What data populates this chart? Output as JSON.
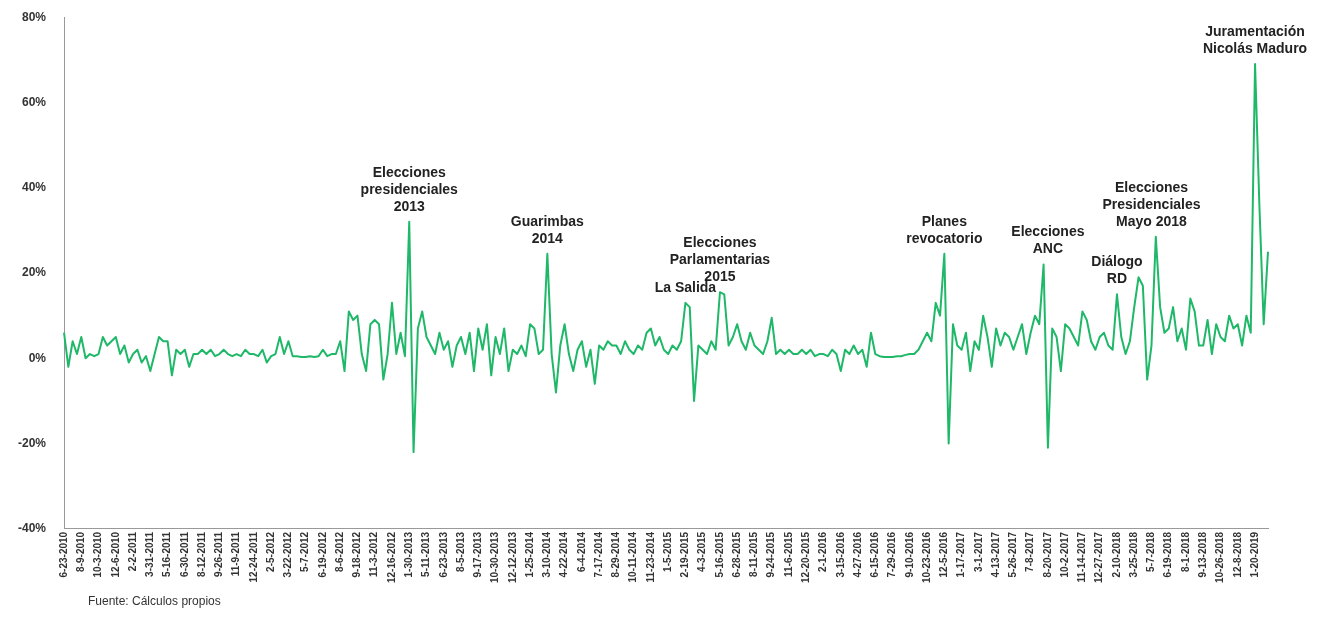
{
  "chart_data": {
    "type": "line",
    "color": "#1fb869",
    "ylim": [
      -40,
      80
    ],
    "yticks": [
      {
        "value": -40,
        "label": "-40%"
      },
      {
        "value": -20,
        "label": "-20%"
      },
      {
        "value": 0,
        "label": "0%"
      },
      {
        "value": 20,
        "label": "20%"
      },
      {
        "value": 40,
        "label": "40%"
      },
      {
        "value": 60,
        "label": "60%"
      },
      {
        "value": 80,
        "label": "80%"
      }
    ],
    "categories": [
      "6-23-2010",
      null,
      null,
      null,
      "8-9-2010",
      null,
      null,
      null,
      "10-3-2010",
      null,
      null,
      null,
      "12-6-2010",
      null,
      null,
      null,
      "2-2-2011",
      null,
      null,
      null,
      "3-31-2011",
      null,
      null,
      null,
      "5-16-2011",
      null,
      null,
      null,
      "6-30-2011",
      null,
      null,
      null,
      "8-12-2011",
      null,
      null,
      null,
      "9-26-2011",
      null,
      null,
      null,
      "11-9-2011",
      null,
      null,
      null,
      "12-24-2011",
      null,
      null,
      null,
      "2-5-2012",
      null,
      null,
      null,
      "3-22-2012",
      null,
      null,
      null,
      "5-7-2012",
      null,
      null,
      null,
      "6-19-2012",
      null,
      null,
      null,
      "8-6-2012",
      null,
      null,
      null,
      "9-18-2012",
      null,
      null,
      null,
      "11-3-2012",
      null,
      null,
      null,
      "12-16-2012",
      null,
      null,
      null,
      "1-30-2013",
      null,
      null,
      null,
      "5-11-2013",
      null,
      null,
      null,
      "6-23-2013",
      null,
      null,
      null,
      "8-5-2013",
      null,
      null,
      null,
      "9-17-2013",
      null,
      null,
      null,
      "10-30-2013",
      null,
      null,
      null,
      "12-12-2013",
      null,
      null,
      null,
      "1-25-2014",
      null,
      null,
      null,
      "3-10-2014",
      null,
      null,
      null,
      "4-22-2014",
      null,
      null,
      null,
      "6-4-2014",
      null,
      null,
      null,
      "7-17-2014",
      null,
      null,
      null,
      "8-29-2014",
      null,
      null,
      null,
      "10-11-2014",
      null,
      null,
      null,
      "11-23-2014",
      null,
      null,
      null,
      "1-5-2015",
      null,
      null,
      null,
      "2-19-2015",
      null,
      null,
      null,
      "4-3-2015",
      null,
      null,
      null,
      "5-16-2015",
      null,
      null,
      null,
      "6-28-2015",
      null,
      null,
      null,
      "8-11-2015",
      null,
      null,
      null,
      "9-24-2015",
      null,
      null,
      null,
      "11-6-2015",
      null,
      null,
      null,
      "12-20-2015",
      null,
      null,
      null,
      "2-1-2016",
      null,
      null,
      null,
      "3-15-2016",
      null,
      null,
      null,
      "4-27-2016",
      null,
      null,
      null,
      "6-15-2016",
      null,
      null,
      null,
      "7-29-2016",
      null,
      null,
      null,
      "9-10-2016",
      null,
      null,
      null,
      "10-23-2016",
      null,
      null,
      null,
      "12-5-2016",
      null,
      null,
      null,
      "1-17-2017",
      null,
      null,
      null,
      "3-1-2017",
      null,
      null,
      null,
      "4-13-2017",
      null,
      null,
      null,
      "5-26-2017",
      null,
      null,
      null,
      "7-8-2017",
      null,
      null,
      null,
      "8-20-2017",
      null,
      null,
      null,
      "10-2-2017",
      null,
      null,
      null,
      "11-14-2017",
      null,
      null,
      null,
      "12-27-2017",
      null,
      null,
      null,
      "2-10-2018",
      null,
      null,
      null,
      "3-25-2018",
      null,
      null,
      null,
      "5-7-2018",
      null,
      null,
      null,
      "6-19-2018",
      null,
      null,
      null,
      "8-1-2018",
      null,
      null,
      null,
      "9-13-2018",
      null,
      null,
      null,
      "10-26-2018",
      null,
      null,
      null,
      "12-8-2018",
      null,
      null,
      null,
      "1-20-2019",
      null,
      null,
      null
    ],
    "values": [
      6,
      -2,
      4,
      1,
      5,
      0,
      1,
      0.5,
      1,
      5,
      3,
      4,
      5,
      1,
      3,
      -1,
      1,
      2,
      -1,
      0.5,
      -3,
      1,
      5,
      4,
      4,
      -4,
      2,
      1,
      2,
      -2,
      1,
      1,
      2,
      1,
      2,
      0.5,
      1,
      2,
      1,
      0.5,
      1,
      0.5,
      2,
      1,
      1,
      0.5,
      2,
      -1,
      0.5,
      1,
      5,
      1,
      4,
      0.5,
      0.5,
      0.3,
      0.3,
      0.5,
      0.3,
      0.5,
      2,
      0.5,
      1,
      1,
      4,
      -3,
      11,
      9,
      10,
      1,
      -3,
      8,
      9,
      8,
      -5,
      1,
      13,
      1,
      6,
      0.5,
      32,
      -22,
      7,
      11,
      5,
      3,
      1,
      6,
      2,
      4,
      -2,
      3,
      5,
      1,
      6,
      -3,
      7,
      2,
      8,
      -4,
      5,
      1,
      7,
      -3,
      2,
      1,
      3,
      0.5,
      8,
      7,
      1,
      2,
      24.5,
      1,
      -8,
      3,
      8,
      1,
      -3,
      2,
      4,
      -2,
      2,
      -6,
      3,
      2,
      4,
      3,
      3,
      1,
      4,
      2,
      1,
      3,
      2,
      6,
      7,
      3,
      5,
      2,
      1,
      3,
      2,
      4,
      13,
      12,
      -10,
      3,
      2,
      1,
      4,
      2,
      15.5,
      15,
      3,
      5,
      8,
      4,
      2,
      6,
      3,
      2,
      1,
      4,
      9.5,
      1,
      2,
      1,
      2,
      1,
      1,
      2,
      1,
      2,
      0.5,
      1,
      1,
      0.5,
      2,
      1,
      -3,
      2,
      1,
      3,
      1,
      2,
      -2,
      6,
      1,
      0.5,
      0.3,
      0.3,
      0.3,
      0.5,
      0.5,
      0.8,
      1,
      1,
      2,
      4,
      6,
      4,
      13,
      10,
      24.5,
      -20,
      8,
      3,
      2,
      6,
      -3,
      4,
      2,
      10,
      5,
      -2,
      7,
      3,
      6,
      5,
      2,
      5,
      8,
      1,
      6,
      10,
      8,
      22,
      -21,
      7,
      5,
      -3,
      8,
      7,
      5,
      3,
      11,
      9,
      4,
      2,
      5,
      6,
      3,
      2,
      15,
      5,
      1,
      4,
      12,
      19,
      17,
      -5,
      3,
      28.5,
      12,
      6,
      7,
      12,
      4,
      7,
      2,
      14,
      11,
      3,
      3,
      9,
      1,
      8,
      5,
      4,
      10,
      7,
      8,
      3,
      10,
      6,
      69,
      36,
      8,
      25
    ],
    "annotations": [
      {
        "text": "Elecciones\npresidenciales\n2013",
        "x": "1-30-2013",
        "y": 32
      },
      {
        "text": "Guarimbas\n2014",
        "x": "3-10-2014",
        "y": 24.5
      },
      {
        "text": "La Salida",
        "x": "2-19-2015",
        "y": 13
      },
      {
        "text": "Elecciones\nParlamentarias\n2015",
        "x": "5-16-2015",
        "y": 15.5
      },
      {
        "text": "Planes\nrevocatorio",
        "x": "12-5-2016",
        "y": 24.5
      },
      {
        "text": "Elecciones\nANC",
        "x": "8-20-2017",
        "y": 22
      },
      {
        "text": "Diálogo\nRD",
        "x": "2-10-2018",
        "y": 15
      },
      {
        "text": "Elecciones\nPresidenciales\nMayo 2018",
        "x": "5-7-2018",
        "y": 28.5
      },
      {
        "text": "Juramentación\nNicolás Maduro",
        "x": "1-20-2019",
        "y": 69
      },
      "Fuente: Cálculos propios"
    ]
  }
}
